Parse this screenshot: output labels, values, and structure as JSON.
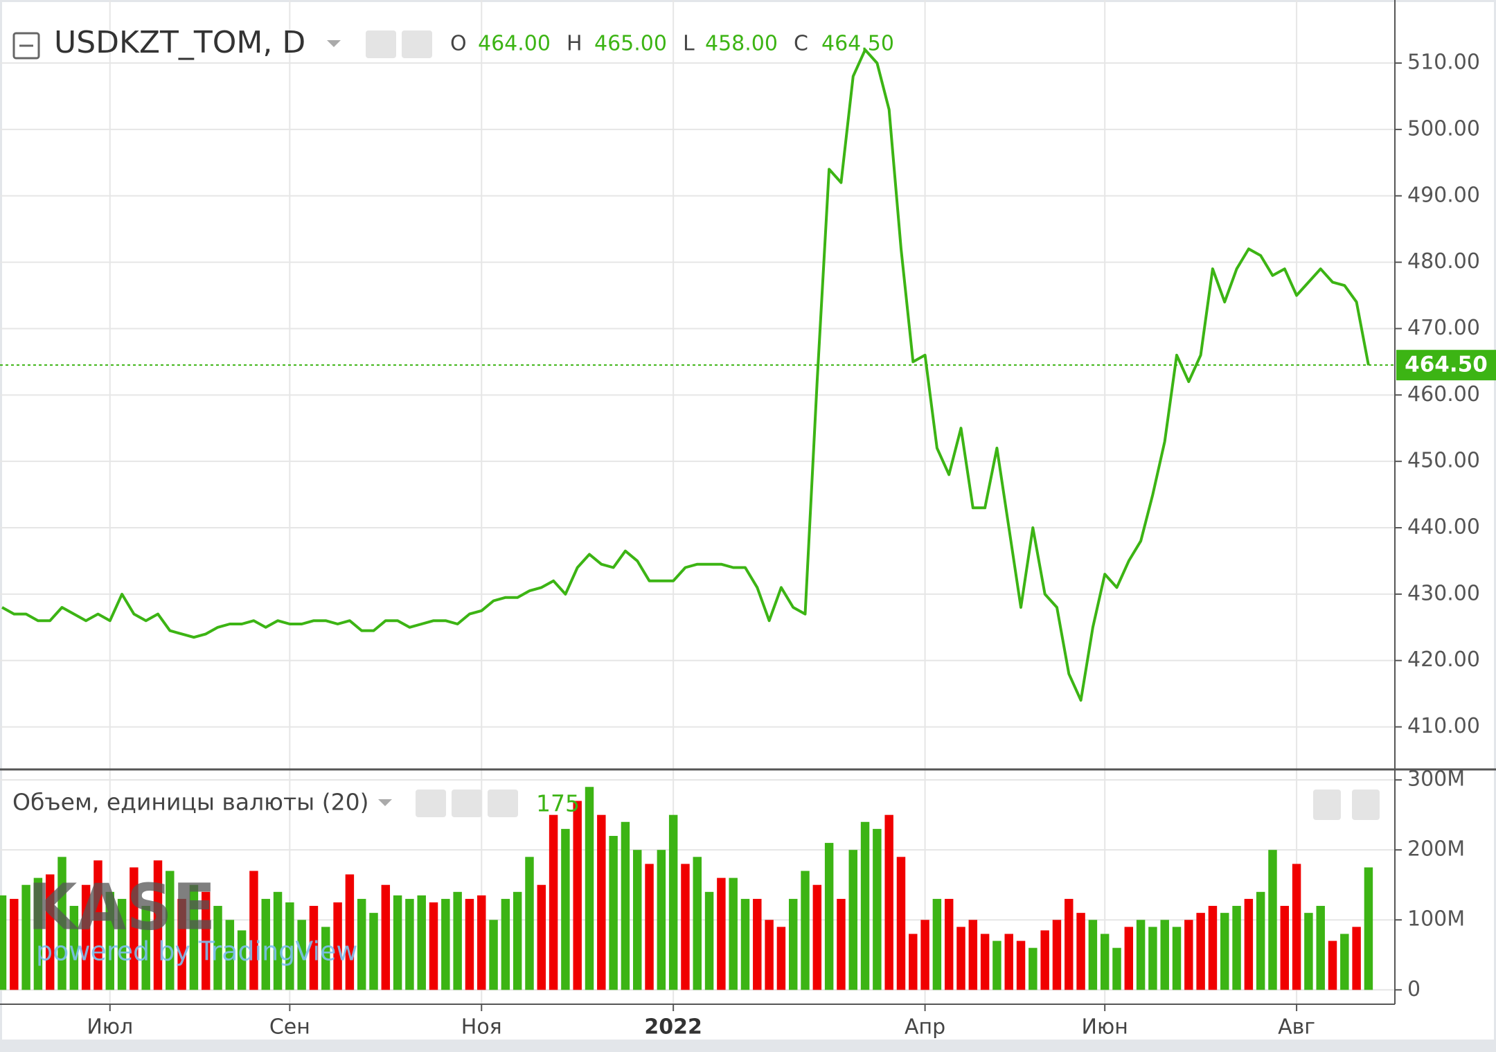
{
  "chart_data": [
    {
      "type": "line",
      "title": "USDKZT_TOM, D",
      "ohlc": [
        {
          "label": "O",
          "value": "464.00"
        },
        {
          "label": "H",
          "value": "465.00"
        },
        {
          "label": "L",
          "value": "458.00"
        },
        {
          "label": "C",
          "value": "464.50"
        }
      ],
      "categories": [
        null,
        null,
        null,
        null,
        null,
        null,
        null,
        null,
        null,
        "Июл",
        null,
        null,
        null,
        null,
        null,
        null,
        null,
        null,
        null,
        null,
        null,
        null,
        null,
        null,
        "Сен",
        null,
        null,
        null,
        null,
        null,
        null,
        null,
        null,
        null,
        null,
        null,
        null,
        null,
        null,
        null,
        "Ноя",
        null,
        null,
        null,
        null,
        null,
        null,
        null,
        null,
        null,
        null,
        null,
        null,
        null,
        null,
        null,
        "2022",
        null,
        null,
        null,
        null,
        null,
        null,
        null,
        null,
        null,
        null,
        null,
        null,
        null,
        null,
        null,
        null,
        null,
        null,
        null,
        null,
        "Апр",
        null,
        null,
        null,
        null,
        null,
        null,
        null,
        null,
        null,
        null,
        null,
        null,
        null,
        null,
        "Июн",
        null,
        null,
        null,
        null,
        null,
        null,
        null,
        null,
        null,
        null,
        null,
        null,
        null,
        null,
        null,
        "Авг",
        null,
        null,
        null,
        null,
        null,
        null
      ],
      "series": [
        {
          "color": "#3cb414",
          "values": [
            428,
            427,
            427,
            426,
            426,
            428,
            427,
            426,
            427,
            426,
            430,
            427,
            426,
            427,
            424.5,
            424,
            423.5,
            424,
            425,
            425.5,
            425.5,
            426,
            425,
            426,
            425.5,
            425.5,
            426,
            426,
            425.5,
            426,
            424.5,
            424.5,
            426,
            426,
            425,
            425.5,
            426,
            426,
            425.5,
            427,
            427.5,
            429,
            429.5,
            429.5,
            430.5,
            431,
            432,
            430,
            434,
            436,
            434.5,
            434,
            436.5,
            435,
            432,
            432,
            432,
            434,
            434.5,
            434.5,
            434.5,
            434,
            434,
            431,
            426,
            431,
            428,
            427,
            462,
            494,
            492,
            508,
            512,
            510,
            503,
            482,
            465,
            466,
            452,
            448,
            455,
            443,
            443,
            452,
            440,
            428,
            440,
            430,
            428,
            418,
            414,
            425,
            433,
            431,
            435,
            438,
            445,
            453,
            466,
            462,
            466,
            479,
            474,
            479,
            482,
            481,
            478,
            479,
            475,
            477,
            479,
            477,
            476.5,
            474,
            464.5
          ]
        }
      ],
      "ylim": [
        403.8,
        519.5
      ],
      "yticks": [
        {
          "value": 410,
          "label": "410.00"
        },
        {
          "value": 420,
          "label": "420.00"
        },
        {
          "value": 430,
          "label": "430.00"
        },
        {
          "value": 440,
          "label": "440.00"
        },
        {
          "value": 450,
          "label": "450.00"
        },
        {
          "value": 460,
          "label": "460.00"
        },
        {
          "value": 470,
          "label": "470.00"
        },
        {
          "value": 480,
          "label": "480.00"
        },
        {
          "value": 490,
          "label": "490.00"
        },
        {
          "value": 500,
          "label": "500.00"
        },
        {
          "value": 510,
          "label": "510.00"
        }
      ],
      "last_label": "464.50",
      "grid": true,
      "watermark": "KASE",
      "watermark_sub": "powered by TradingView"
    },
    {
      "type": "bar",
      "title": "Объем, единицы валюты (20)",
      "last_label": "175",
      "values": [
        135,
        130,
        150,
        160,
        165,
        190,
        120,
        150,
        185,
        140,
        130,
        175,
        120,
        185,
        170,
        130,
        150,
        140,
        120,
        100,
        85,
        170,
        130,
        140,
        125,
        100,
        120,
        90,
        125,
        165,
        130,
        110,
        150,
        135,
        130,
        135,
        125,
        130,
        140,
        130,
        135,
        100,
        130,
        140,
        190,
        150,
        250,
        230,
        270,
        290,
        250,
        220,
        240,
        200,
        180,
        200,
        250,
        180,
        190,
        140,
        160,
        160,
        130,
        130,
        100,
        90,
        130,
        170,
        150,
        210,
        130,
        200,
        240,
        230,
        250,
        190,
        80,
        100,
        130,
        130,
        90,
        100,
        80,
        70,
        80,
        70,
        60,
        85,
        100,
        130,
        110,
        100,
        80,
        60,
        90,
        100,
        90,
        100,
        90,
        100,
        110,
        120,
        110,
        120,
        130,
        140,
        200,
        120,
        180,
        110,
        120,
        70,
        80,
        90,
        175
      ],
      "colors": [
        "#3cb414",
        "#f00000",
        "#3cb414",
        "#3cb414",
        "#f00000",
        "#3cb414",
        "#3cb414",
        "#f00000",
        "#f00000",
        "#3cb414",
        "#3cb414",
        "#f00000",
        "#3cb414",
        "#f00000",
        "#3cb414",
        "#f00000",
        "#3cb414",
        "#f00000",
        "#3cb414",
        "#3cb414",
        "#3cb414",
        "#f00000",
        "#3cb414",
        "#3cb414",
        "#3cb414",
        "#3cb414",
        "#f00000",
        "#3cb414",
        "#f00000",
        "#f00000",
        "#3cb414",
        "#3cb414",
        "#f00000",
        "#3cb414",
        "#3cb414",
        "#3cb414",
        "#f00000",
        "#3cb414",
        "#3cb414",
        "#f00000",
        "#f00000",
        "#3cb414",
        "#3cb414",
        "#3cb414",
        "#3cb414",
        "#f00000",
        "#f00000",
        "#3cb414",
        "#f00000",
        "#3cb414",
        "#f00000",
        "#3cb414",
        "#3cb414",
        "#3cb414",
        "#f00000",
        "#3cb414",
        "#3cb414",
        "#f00000",
        "#3cb414",
        "#3cb414",
        "#f00000",
        "#3cb414",
        "#3cb414",
        "#f00000",
        "#f00000",
        "#f00000",
        "#3cb414",
        "#3cb414",
        "#f00000",
        "#3cb414",
        "#f00000",
        "#3cb414",
        "#3cb414",
        "#3cb414",
        "#f00000",
        "#f00000",
        "#f00000",
        "#f00000",
        "#3cb414",
        "#f00000",
        "#f00000",
        "#f00000",
        "#f00000",
        "#3cb414",
        "#f00000",
        "#f00000",
        "#3cb414",
        "#f00000",
        "#f00000",
        "#f00000",
        "#f00000",
        "#3cb414",
        "#3cb414",
        "#3cb414",
        "#f00000",
        "#3cb414",
        "#3cb414",
        "#3cb414",
        "#3cb414",
        "#f00000",
        "#f00000",
        "#f00000",
        "#3cb414",
        "#3cb414",
        "#f00000",
        "#3cb414",
        "#3cb414",
        "#f00000",
        "#f00000",
        "#3cb414",
        "#3cb414",
        "#f00000",
        "#3cb414",
        "#f00000",
        "#3cb414"
      ],
      "ylim": [
        -20.5,
        313
      ],
      "yticks": [
        0,
        {
          "value": 100,
          "label": "100M"
        },
        {
          "value": 200,
          "label": "200M"
        },
        {
          "value": 300,
          "label": "300M"
        }
      ]
    }
  ]
}
